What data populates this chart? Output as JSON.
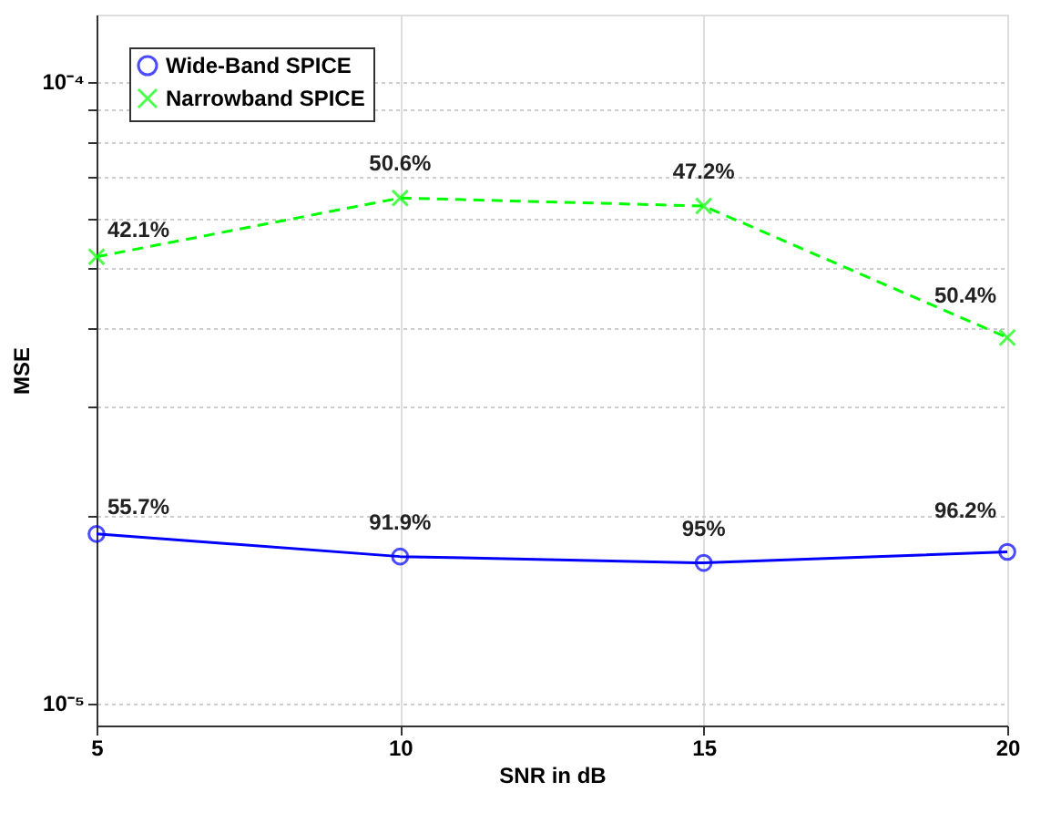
{
  "chart_data": {
    "type": "line",
    "xlabel": "SNR in dB",
    "ylabel": "MSE",
    "x": [
      5,
      10,
      15,
      20
    ],
    "series": [
      {
        "name": "Wide-Band SPICE",
        "color": "#0000ff",
        "values": [
          1.87e-05,
          1.72e-05,
          1.68e-05,
          1.75e-05
        ],
        "marker": "circle",
        "line_style": "solid"
      },
      {
        "name": "Narrowband SPICE",
        "color": "#00ff00",
        "values": [
          5.22e-05,
          6.49e-05,
          6.3e-05,
          3.87e-05
        ],
        "marker": "cross",
        "line_style": "dashed"
      }
    ],
    "annotations": [
      {
        "text": "55.7%",
        "x": 5,
        "y": 1.87e-05
      },
      {
        "text": "91.9%",
        "x": 10,
        "y": 1.72e-05
      },
      {
        "text": "95%",
        "x": 15,
        "y": 1.68e-05
      },
      {
        "text": "96.2%",
        "x": 20,
        "y": 1.75e-05
      },
      {
        "text": "42.1%",
        "x": 5,
        "y": 5.22e-05
      },
      {
        "text": "50.6%",
        "x": 10,
        "y": 6.49e-05
      },
      {
        "text": "47.2%",
        "x": 15,
        "y": 6.3e-05
      },
      {
        "text": "50.4%",
        "x": 20,
        "y": 3.87e-05
      }
    ],
    "log": "y",
    "xlim": [
      5,
      20
    ],
    "ylim": [
      9.2e-06,
      0.000128
    ],
    "xticks": [
      5,
      10,
      15,
      20
    ],
    "yticks": [
      {
        "value": 1e-05,
        "label": "10⁻⁵"
      },
      {
        "value": 2e-05,
        "label": null
      },
      {
        "value": 3e-05,
        "label": null
      },
      {
        "value": 4e-05,
        "label": null
      },
      {
        "value": 5e-05,
        "label": null
      },
      {
        "value": 6e-05,
        "label": null
      },
      {
        "value": 7e-05,
        "label": null
      },
      {
        "value": 8e-05,
        "label": null
      },
      {
        "value": 9e-05,
        "label": null
      },
      {
        "value": 0.0001,
        "label": "10⁻⁴"
      }
    ],
    "grid": true,
    "legend": "top left"
  }
}
